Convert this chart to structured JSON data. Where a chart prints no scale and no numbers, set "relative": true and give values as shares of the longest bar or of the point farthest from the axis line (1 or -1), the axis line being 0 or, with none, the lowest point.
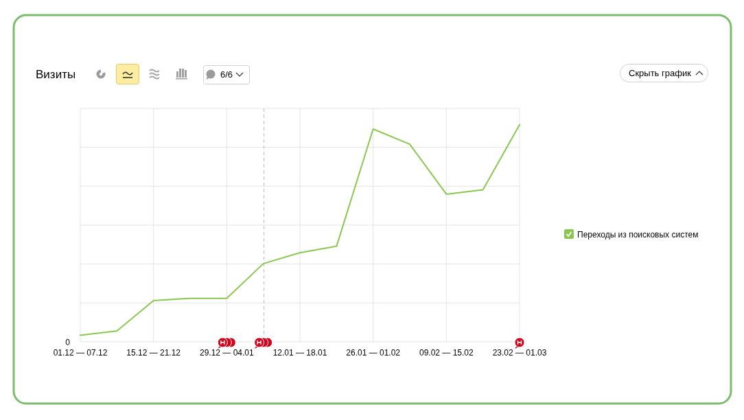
{
  "chart_data": {
    "type": "line",
    "title": "Визиты",
    "categories": [
      "01.12 — 07.12",
      null,
      "15.12 — 21.12",
      null,
      "29.12 — 04.01",
      null,
      "12.01 — 18.01",
      null,
      "26.01 — 01.02",
      null,
      "09.02 — 15.02",
      null,
      "23.02 — 01.03"
    ],
    "series": [
      {
        "name": "Переходы из поисковых систем",
        "color": "#8bc652",
        "values": [
          0.03,
          0.05,
          0.19,
          0.2,
          0.2,
          0.36,
          0.41,
          0.44,
          0.98,
          0.91,
          0.68,
          0.7,
          1
        ]
      }
    ],
    "relative": true,
    "grid": true,
    "legend": "right",
    "annotations": [
      "0",
      "6/6",
      "Скрыть график"
    ]
  }
}
